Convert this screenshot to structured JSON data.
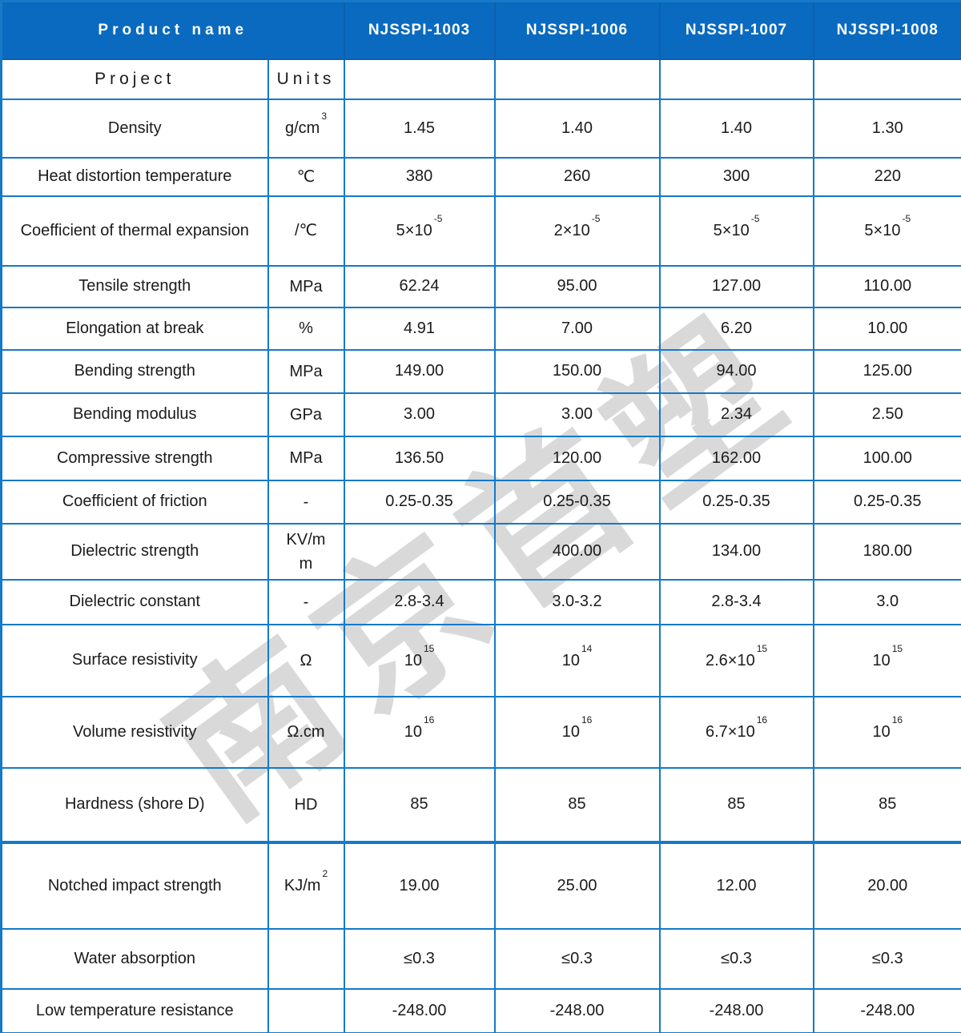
{
  "watermark": {
    "text": "南京首塑",
    "color": "#d9d9d9"
  },
  "colors": {
    "header_bg": "#0a6abf",
    "header_text": "#ffffff",
    "table_border": "#1579c8",
    "body_text": "#1b1b1b",
    "watermark_gray": "#d9d9d9"
  },
  "header": {
    "product_name_label": "Product name",
    "products": [
      "NJSSPI-1003",
      "NJSSPI-1006",
      "NJSSPI-1007",
      "NJSSPI-1008"
    ]
  },
  "subheader": {
    "project_label": "Project",
    "units_label": "Units"
  },
  "rows": [
    {
      "label": "Density",
      "unit": {
        "base": "g/cm",
        "sup": "3"
      },
      "values": [
        "1.45",
        "1.40",
        "1.40",
        "1.30"
      ]
    },
    {
      "label": "Heat distortion temperature",
      "unit": {
        "base": "℃"
      },
      "values": [
        "380",
        "260",
        "300",
        "220"
      ]
    },
    {
      "label": "Coefficient of thermal expansion",
      "unit": {
        "base": "/℃"
      },
      "values": [
        {
          "base": "5×10",
          "sup": "-5"
        },
        {
          "base": "2×10",
          "sup": "-5"
        },
        {
          "base": "5×10",
          "sup": "-5"
        },
        {
          "base": "5×10",
          "sup": "-5"
        }
      ]
    },
    {
      "label": "Tensile strength",
      "unit": {
        "base": "MPa"
      },
      "values": [
        "62.24",
        "95.00",
        "127.00",
        "110.00"
      ]
    },
    {
      "label": "Elongation at break",
      "unit": {
        "base": "%"
      },
      "values": [
        "4.91",
        "7.00",
        "6.20",
        "10.00"
      ]
    },
    {
      "label": "Bending strength",
      "unit": {
        "base": "MPa"
      },
      "values": [
        "149.00",
        "150.00",
        "94.00",
        "125.00"
      ]
    },
    {
      "label": "Bending modulus",
      "unit": {
        "base": "GPa"
      },
      "values": [
        "3.00",
        "3.00",
        "2.34",
        "2.50"
      ]
    },
    {
      "label": "Compressive strength",
      "unit": {
        "base": "MPa"
      },
      "values": [
        "136.50",
        "120.00",
        "162.00",
        "100.00"
      ]
    },
    {
      "label": "Coefficient of friction",
      "unit": {
        "base": "-"
      },
      "values": [
        "0.25-0.35",
        "0.25-0.35",
        "0.25-0.35",
        "0.25-0.35"
      ]
    },
    {
      "label": "Dielectric strength",
      "unit": {
        "base": "KV/mm"
      },
      "values": [
        "",
        "400.00",
        "134.00",
        "180.00"
      ]
    },
    {
      "label": "Dielectric constant",
      "unit": {
        "base": "-"
      },
      "values": [
        "2.8-3.4",
        "3.0-3.2",
        "2.8-3.4",
        "3.0"
      ]
    },
    {
      "label": "Surface resistivity",
      "unit": {
        "base": "Ω"
      },
      "values": [
        {
          "base": "10",
          "sup": "15"
        },
        {
          "base": "10",
          "sup": "14"
        },
        {
          "base": "2.6×10",
          "sup": "15"
        },
        {
          "base": "10",
          "sup": "15"
        }
      ]
    },
    {
      "label": "Volume resistivity",
      "unit": {
        "base": "Ω.cm"
      },
      "values": [
        {
          "base": "10",
          "sup": "16"
        },
        {
          "base": "10",
          "sup": "16"
        },
        {
          "base": "6.7×10",
          "sup": "16"
        },
        {
          "base": "10",
          "sup": "16"
        }
      ]
    },
    {
      "label": "Hardness (shore D)",
      "unit": {
        "base": "HD"
      },
      "values": [
        "85",
        "85",
        "85",
        "85"
      ]
    },
    {
      "label": "Notched impact strength",
      "unit": {
        "base": "KJ/m",
        "sup": "2"
      },
      "values": [
        "19.00",
        "25.00",
        "12.00",
        "20.00"
      ]
    },
    {
      "label": "Water absorption",
      "unit": {
        "base": ""
      },
      "values": [
        "≤0.3",
        "≤0.3",
        "≤0.3",
        "≤0.3"
      ]
    },
    {
      "label": "Low temperature resistance",
      "unit": {
        "base": ""
      },
      "values": [
        "-248.00",
        "-248.00",
        "-248.00",
        "-248.00"
      ]
    }
  ]
}
